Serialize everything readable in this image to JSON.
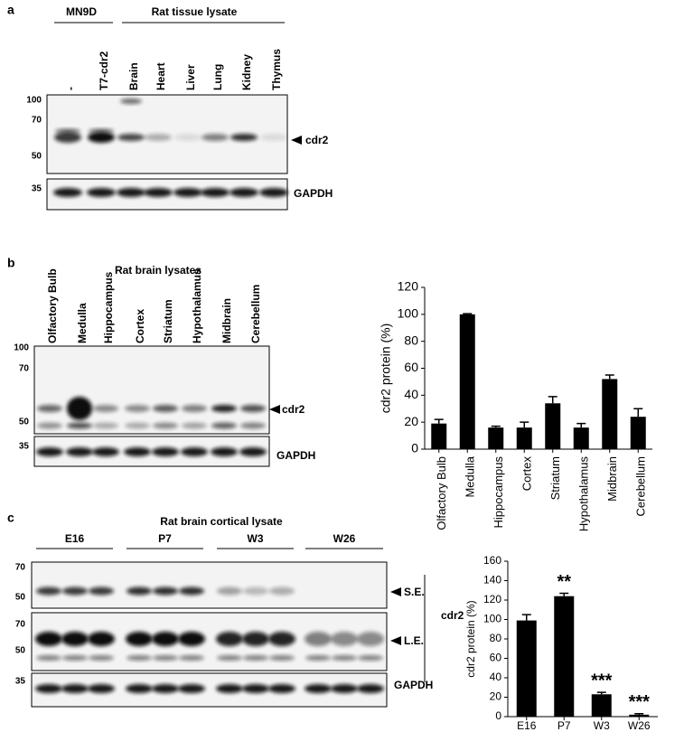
{
  "panel_a": {
    "letter": "a",
    "groups": [
      "MN9D",
      "Rat tissue lysate"
    ],
    "lanes": [
      "-",
      "T7-cdr2",
      "Brain",
      "Heart",
      "Liver",
      "Lung",
      "Kidney",
      "Thymus"
    ],
    "markers_top": [
      100,
      70,
      50
    ],
    "markers_bottom": [
      35
    ],
    "band_label": "cdr2",
    "loading_label": "GAPDH"
  },
  "panel_b": {
    "letter": "b",
    "title": "Rat brain lysates",
    "lanes": [
      "Olfactory Bulb",
      "Medulla",
      "Hippocampus",
      "Cortex",
      "Striatum",
      "Hypothalamus",
      "Midbrain",
      "Cerebellum"
    ],
    "markers_top": [
      100,
      70,
      50
    ],
    "markers_bottom": [
      35
    ],
    "band_label": "cdr2",
    "loading_label": "GAPDH"
  },
  "panel_c": {
    "letter": "c",
    "title": "Rat brain cortical lysate",
    "groups": [
      "E16",
      "P7",
      "W3",
      "W26"
    ],
    "markers_se": [
      70,
      50
    ],
    "markers_le": [
      70,
      50
    ],
    "markers_bottom": [
      35
    ],
    "se_label": "S.E.",
    "le_label": "L.E.",
    "band_label": "cdr2",
    "loading_label": "GAPDH"
  },
  "chart_data": [
    {
      "type": "bar",
      "ylabel": "cdr2 protein (%)",
      "categories": [
        "Olfactory Bulb",
        "Medulla",
        "Hippocampus",
        "Cortex",
        "Striatum",
        "Hypothalamus",
        "Midbrain",
        "Cerebellum"
      ],
      "values": [
        19,
        100,
        16,
        16,
        34,
        16,
        52,
        24
      ],
      "errors": [
        3,
        0.5,
        1,
        4,
        5,
        3,
        3,
        6
      ],
      "color": "#000000",
      "ylim": [
        0,
        120
      ],
      "yticks": [
        0,
        20,
        40,
        60,
        80,
        100,
        120
      ]
    },
    {
      "type": "bar",
      "ylabel": "cdr2 protein (%)",
      "categories": [
        "E16",
        "P7",
        "W3",
        "W26"
      ],
      "values": [
        99,
        124,
        23,
        2
      ],
      "errors": [
        6,
        3,
        2,
        1
      ],
      "annotations": [
        null,
        "**",
        "***",
        "***"
      ],
      "color": "#000000",
      "ylim": [
        0,
        160
      ],
      "yticks": [
        0,
        20,
        40,
        60,
        80,
        100,
        120,
        140,
        160
      ]
    }
  ]
}
